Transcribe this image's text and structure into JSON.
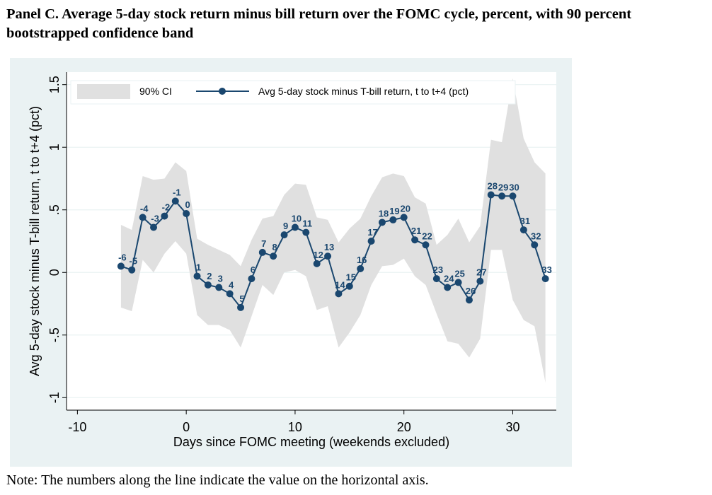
{
  "title": "Panel C. Average 5-day stock return minus bill return over the FOMC cycle, percent, with 90 percent bootstrapped confidence band",
  "note": "Note: The numbers along the line indicate the value on the horizontal axis.",
  "chart_data": {
    "type": "line",
    "xlabel": "Days since FOMC meeting (weekends excluded)",
    "ylabel": "Avg 5-day stock minus T-bill return, t to t+4 (pct)",
    "xlim": [
      -11,
      34
    ],
    "ylim": [
      -1.1,
      1.6
    ],
    "x_ticks": [
      -10,
      0,
      10,
      20,
      30
    ],
    "x_tick_labels": [
      "-10",
      "0",
      "10",
      "20",
      "30"
    ],
    "y_ticks": [
      -1,
      -0.5,
      0,
      0.5,
      1,
      1.5
    ],
    "y_tick_labels": [
      "-1",
      "-.5",
      "0",
      ".5",
      "1",
      "1.5"
    ],
    "grid": true,
    "legend": {
      "placement": "top",
      "items": [
        "90% CI",
        "Avg 5-day stock minus T-bill return, t to t+4 (pct)"
      ]
    },
    "colors": {
      "line": "#1a476f",
      "band": "#e0e0e0",
      "plot_bg": "#ffffff",
      "outer_bg": "#eaf2f3",
      "grid": "#eaf2f3"
    },
    "x": [
      -6,
      -5,
      -4,
      -3,
      -2,
      -1,
      0,
      1,
      2,
      3,
      4,
      5,
      6,
      7,
      8,
      9,
      10,
      11,
      12,
      13,
      14,
      15,
      16,
      17,
      18,
      19,
      20,
      21,
      22,
      23,
      24,
      25,
      26,
      27,
      28,
      29,
      30,
      31,
      32,
      33
    ],
    "series": [
      {
        "name": "Avg 5-day stock minus T-bill return, t to t+4 (pct)",
        "values": [
          0.05,
          0.02,
          0.44,
          0.36,
          0.45,
          0.57,
          0.47,
          -0.03,
          -0.1,
          -0.12,
          -0.17,
          -0.28,
          -0.05,
          0.16,
          0.13,
          0.3,
          0.36,
          0.32,
          0.07,
          0.13,
          -0.17,
          -0.11,
          0.03,
          0.25,
          0.4,
          0.42,
          0.44,
          0.26,
          0.22,
          -0.05,
          -0.12,
          -0.08,
          -0.22,
          -0.07,
          0.62,
          0.61,
          0.61,
          0.34,
          0.22,
          -0.05
        ],
        "point_labels": [
          "-6",
          "-5",
          "-4",
          "-3",
          "-2",
          "-1",
          "0",
          "1",
          "2",
          "3",
          "4",
          "5",
          "6",
          "7",
          "8",
          "9",
          "10",
          "11",
          "12",
          "13",
          "14",
          "15",
          "16",
          "17",
          "18",
          "19",
          "20",
          "21",
          "22",
          "23",
          "24",
          "25",
          "26",
          "27",
          "28",
          "29",
          "30",
          "31",
          "32",
          "33"
        ]
      }
    ],
    "confidence_band": {
      "name": "90% CI",
      "lower": [
        -0.28,
        -0.31,
        0.1,
        0.0,
        0.15,
        0.25,
        0.15,
        -0.34,
        -0.42,
        -0.42,
        -0.46,
        -0.6,
        -0.35,
        -0.1,
        -0.18,
        0.0,
        0.02,
        -0.03,
        -0.3,
        -0.27,
        -0.6,
        -0.48,
        -0.34,
        -0.1,
        0.05,
        0.06,
        0.11,
        -0.03,
        -0.1,
        -0.33,
        -0.55,
        -0.57,
        -0.68,
        -0.53,
        0.18,
        0.18,
        -0.22,
        -0.38,
        -0.43,
        -0.88
      ],
      "upper": [
        0.38,
        0.34,
        0.77,
        0.74,
        0.75,
        0.88,
        0.81,
        0.27,
        0.22,
        0.18,
        0.14,
        0.05,
        0.26,
        0.43,
        0.45,
        0.62,
        0.71,
        0.7,
        0.44,
        0.42,
        0.24,
        0.35,
        0.43,
        0.61,
        0.76,
        0.79,
        0.77,
        0.6,
        0.55,
        0.22,
        0.3,
        0.43,
        0.24,
        0.37,
        1.06,
        1.04,
        1.55,
        1.07,
        0.88,
        0.79
      ]
    }
  }
}
